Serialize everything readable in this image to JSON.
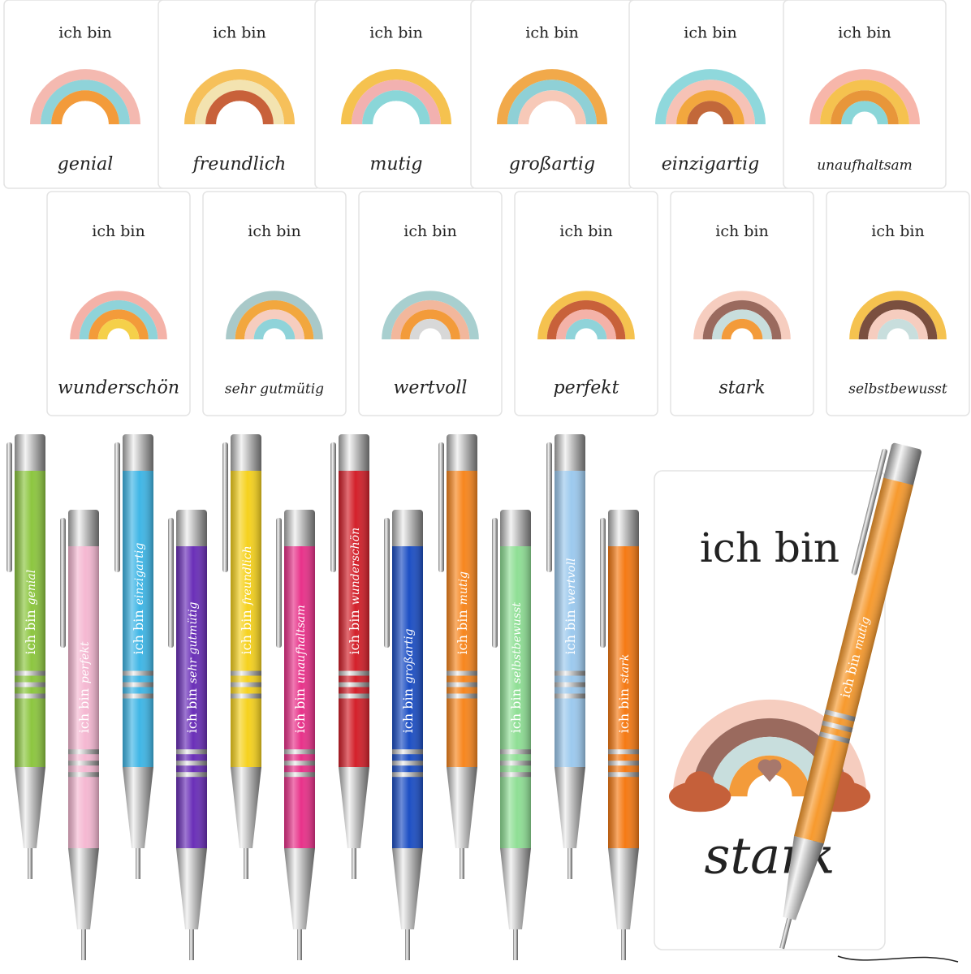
{
  "notebooks": [
    {
      "header": "ich bin",
      "word": "genial"
    },
    {
      "header": "ich bin",
      "word": "freundlich"
    },
    {
      "header": "ich bin",
      "word": "mutig"
    },
    {
      "header": "ich bin",
      "word": "großartig"
    },
    {
      "header": "ich bin",
      "word": "einzigartig"
    },
    {
      "header": "ich bin",
      "word": "unaufhaltsam"
    },
    {
      "header": "ich bin",
      "word": "wunderschön"
    },
    {
      "header": "ich bin",
      "word": "sehr gutmütig"
    },
    {
      "header": "ich bin",
      "word": "wertvoll"
    },
    {
      "header": "ich bin",
      "word": "perfekt"
    },
    {
      "header": "ich bin",
      "word": "stark"
    },
    {
      "header": "ich bin",
      "word": "selbstbewusst"
    }
  ],
  "featured_notebook": {
    "header": "ich bin",
    "word": "stark"
  },
  "pens": [
    {
      "prefix": "ich bin",
      "word": "genial",
      "color": "#8cc63f"
    },
    {
      "prefix": "ich bin",
      "word": "perfekt",
      "color": "#f5b8d2"
    },
    {
      "prefix": "ich bin",
      "word": "einzigartig",
      "color": "#3fb6e6"
    },
    {
      "prefix": "ich bin",
      "word": "sehr gutmütig",
      "color": "#6a2fb8"
    },
    {
      "prefix": "ich bin",
      "word": "freundlich",
      "color": "#f6d21e"
    },
    {
      "prefix": "ich bin",
      "word": "unaufhaltsam",
      "color": "#e8328a"
    },
    {
      "prefix": "ich bin",
      "word": "wunderschön",
      "color": "#d3202a"
    },
    {
      "prefix": "ich bin",
      "word": "großartig",
      "color": "#1d4fc4"
    },
    {
      "prefix": "ich bin",
      "word": "mutig",
      "color": "#f7861e"
    },
    {
      "prefix": "ich bin",
      "word": "selbstbewusst",
      "color": "#8fdf95"
    },
    {
      "prefix": "ich bin",
      "word": "wertvoll",
      "color": "#9cc9ee"
    },
    {
      "prefix": "ich bin",
      "word": "stark",
      "color": "#f57a14"
    }
  ],
  "featured_pen": {
    "prefix": "ich bin",
    "word": "mutig",
    "color": "#f79a2e"
  }
}
